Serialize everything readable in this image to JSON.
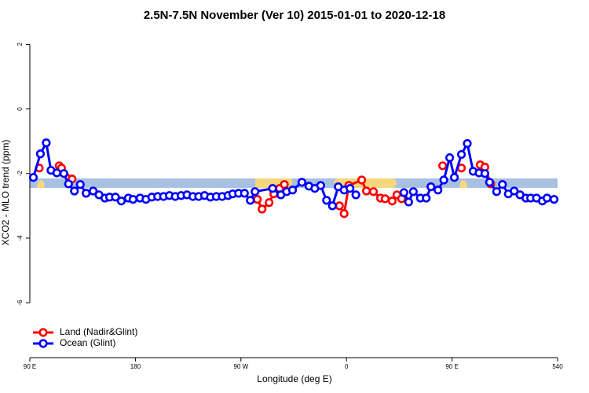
{
  "chart_data": {
    "type": "line",
    "title": "2.5N-7.5N November (Ver 10)   2015-01-01 to 2020-12-18",
    "x_label": "Longitude (deg E)",
    "y_label": "XCO2 - MLO trend (ppm)",
    "xlim": [
      90,
      540
    ],
    "ylim": [
      -7.7,
      2.4
    ],
    "xticks": [
      {
        "value": 90,
        "label": "90 E"
      },
      180,
      {
        "value": 270,
        "label": "90 W"
      },
      {
        "value": 360,
        "label": "0"
      },
      {
        "value": 450,
        "label": "90 E"
      },
      540
    ],
    "yticks": [
      2,
      0,
      -2,
      -4,
      -6
    ],
    "legend": "bottom-left",
    "series": [
      {
        "name": "Land (Nadir&Glint)",
        "color": "#ff0000",
        "x": [
          98,
          null,
          115,
          117,
          126,
          null,
          284,
          288,
          294,
          298,
          303,
          307,
          null,
          354,
          358,
          362,
          373,
          377,
          383,
          389,
          393,
          399,
          403,
          407,
          null,
          442,
          null,
          458,
          null,
          474,
          478,
          483
        ],
        "values": [
          -1.83,
          null,
          -1.76,
          -1.83,
          -2.17,
          null,
          -2.8,
          -3.1,
          -2.9,
          -2.63,
          -2.46,
          -2.34,
          null,
          -3.0,
          -3.24,
          -2.37,
          -2.2,
          -2.54,
          -2.56,
          -2.76,
          -2.78,
          -2.85,
          -2.66,
          -2.78,
          null,
          -1.76,
          null,
          -1.83,
          null,
          -1.73,
          -1.8,
          -2.32
        ]
      },
      {
        "name": "Ocean (Glint)",
        "color": "#0000ff",
        "x": [
          93,
          99,
          104,
          108,
          113,
          119,
          123,
          128,
          133,
          138,
          144,
          149,
          154,
          158,
          163,
          168,
          174,
          178,
          184,
          189,
          194,
          199,
          204,
          209,
          214,
          219,
          224,
          229,
          234,
          239,
          244,
          249,
          254,
          259,
          263,
          268,
          273,
          278,
          282,
          297,
          304,
          309,
          314,
          322,
          328,
          333,
          338,
          343,
          348,
          353,
          358,
          363,
          368,
          null,
          409,
          413,
          417,
          423,
          428,
          432,
          438,
          443,
          448,
          452,
          458,
          463,
          468,
          473,
          478,
          482,
          488,
          493,
          498,
          503,
          508,
          513,
          517,
          522,
          527,
          531,
          537
        ],
        "values": [
          -2.12,
          -1.39,
          -1.05,
          -1.9,
          -1.98,
          -2.0,
          -2.32,
          -2.54,
          -2.34,
          -2.61,
          -2.54,
          -2.66,
          -2.76,
          -2.73,
          -2.73,
          -2.85,
          -2.76,
          -2.8,
          -2.76,
          -2.8,
          -2.73,
          -2.71,
          -2.71,
          -2.68,
          -2.71,
          -2.68,
          -2.66,
          -2.71,
          -2.71,
          -2.68,
          -2.73,
          -2.71,
          -2.71,
          -2.68,
          -2.63,
          -2.61,
          -2.61,
          -2.83,
          -2.56,
          -2.46,
          -2.66,
          -2.56,
          -2.51,
          -2.27,
          -2.39,
          -2.46,
          -2.37,
          -2.83,
          -3.0,
          -2.41,
          -2.51,
          -2.46,
          -2.66,
          null,
          -2.59,
          -2.88,
          -2.56,
          -2.76,
          -2.76,
          -2.41,
          -2.51,
          -2.2,
          -1.51,
          -2.12,
          -1.41,
          -1.07,
          -1.93,
          -1.98,
          -2.0,
          -2.27,
          -2.56,
          -2.34,
          -2.63,
          -2.54,
          -2.66,
          -2.76,
          -2.76,
          -2.76,
          -2.85,
          -2.76,
          -2.8
        ]
      }
    ]
  }
}
